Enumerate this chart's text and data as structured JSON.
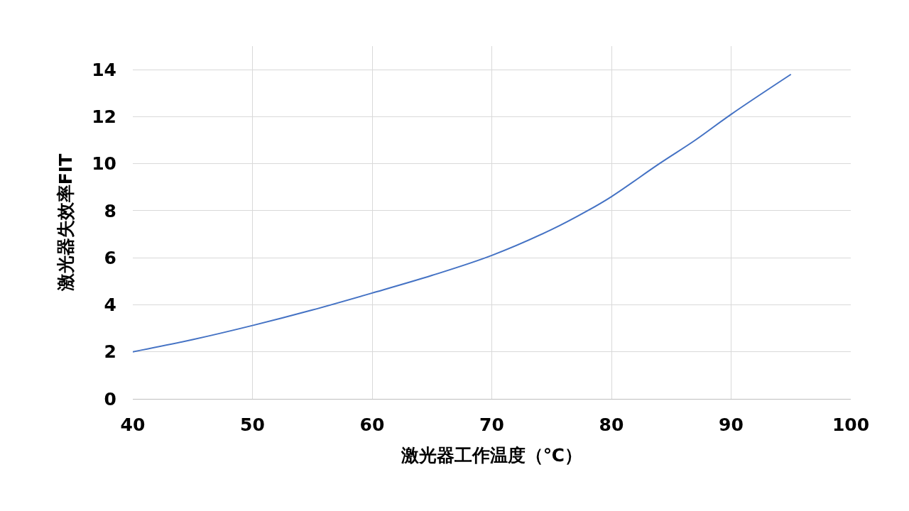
{
  "chart_data": {
    "type": "line",
    "xlabel": "激光器工作温度（℃）",
    "ylabel": "激光器失效率FIT",
    "x": [
      40,
      45,
      50,
      55,
      60,
      65,
      70,
      75,
      78,
      80,
      84,
      87,
      90,
      95
    ],
    "series": [
      {
        "color": "#4472c4",
        "values": [
          2.0,
          2.52,
          3.12,
          3.78,
          4.5,
          5.25,
          6.1,
          7.2,
          8.0,
          8.6,
          10.0,
          11.0,
          12.1,
          13.8
        ]
      }
    ],
    "xlim": [
      40,
      100
    ],
    "ylim": [
      0,
      15
    ],
    "xticks": [
      40,
      50,
      60,
      70,
      80,
      90,
      100
    ],
    "yticks": [
      0,
      2,
      4,
      6,
      8,
      10,
      12,
      14
    ],
    "grid": true,
    "marker": "none",
    "line_style": "solid"
  }
}
